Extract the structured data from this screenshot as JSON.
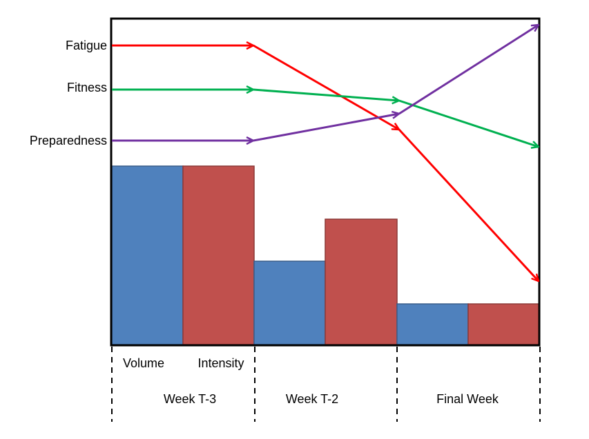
{
  "series_labels": [
    "Fatigue",
    "Fitness",
    "Preparedness"
  ],
  "bar_labels": [
    "Volume",
    "Intensity"
  ],
  "weeks": [
    "Week T-3",
    "Week T-2",
    "Final Week"
  ]
}
